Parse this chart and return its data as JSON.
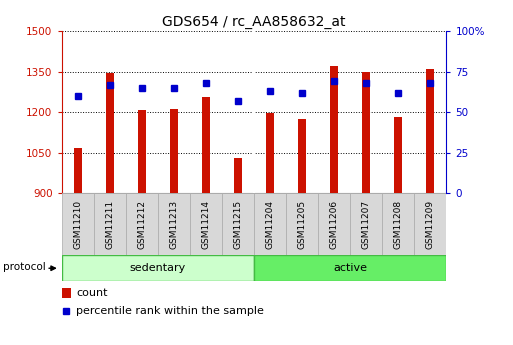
{
  "title": "GDS654 / rc_AA858632_at",
  "samples": [
    "GSM11210",
    "GSM11211",
    "GSM11212",
    "GSM11213",
    "GSM11214",
    "GSM11215",
    "GSM11204",
    "GSM11205",
    "GSM11206",
    "GSM11207",
    "GSM11208",
    "GSM11209"
  ],
  "counts": [
    1068,
    1345,
    1208,
    1210,
    1255,
    1030,
    1197,
    1175,
    1370,
    1348,
    1182,
    1360
  ],
  "percentiles": [
    60,
    67,
    65,
    65,
    68,
    57,
    63,
    62,
    69,
    68,
    62,
    68
  ],
  "bar_color": "#cc1100",
  "marker_color": "#0000cc",
  "ymin": 900,
  "ymax": 1500,
  "yticks": [
    900,
    1050,
    1200,
    1350,
    1500
  ],
  "y2min": 0,
  "y2max": 100,
  "y2ticks": [
    0,
    25,
    50,
    75,
    100
  ],
  "y2ticklabels": [
    "0",
    "25",
    "50",
    "75",
    "100%"
  ],
  "sedentary_color": "#ccffcc",
  "active_color": "#66ee66",
  "cell_color": "#d8d8d8",
  "cell_edge_color": "#aaaaaa",
  "legend_count_label": "count",
  "legend_percentile_label": "percentile rank within the sample",
  "n_sedentary": 6,
  "n_active": 6,
  "bar_width": 0.25
}
